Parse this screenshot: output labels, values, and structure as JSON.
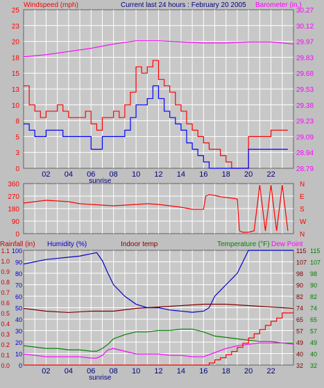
{
  "header": {
    "left": "Windspeed (mph)",
    "center": "Current last 24 hours : February 20 2005",
    "right": "Barometer (in.)"
  },
  "colors": {
    "bg": "#c0c0c0",
    "plot": "#c8c8c8",
    "grid": "#ffffff",
    "wind": "#ff0000",
    "gust": "#ff0000",
    "avg": "#0000ff",
    "baro": "#ff00ff",
    "humidity": "#0000cc",
    "indoor": "#800000",
    "temperature": "#008000",
    "dewpoint": "#ff00ff",
    "rain": "#ff0000"
  },
  "chart_data": [
    {
      "id": "wind",
      "type": "line",
      "xticks": [
        "02",
        "04",
        "06",
        "08",
        "10",
        "12",
        "14",
        "16",
        "18",
        "20",
        "22"
      ],
      "sunrise_label": "sunrise",
      "xrange": [
        0,
        24
      ],
      "ylim_left": [
        0,
        25
      ],
      "yticks_left": [
        "0",
        "3",
        "5",
        "8",
        "10",
        "13",
        "15",
        "18",
        "20",
        "23",
        "25"
      ],
      "yticks_right": [
        "28.79",
        "28.94",
        "29.09",
        "29.23",
        "29.38",
        "29.53",
        "29.68",
        "29.83",
        "29.97",
        "30.12",
        "30.27"
      ],
      "ylim_right": [
        28.79,
        30.27
      ],
      "series": [
        {
          "color": "#ff0000",
          "x": [
            0,
            0.5,
            1,
            1.5,
            2,
            2.5,
            3,
            3.5,
            4,
            4.5,
            5,
            5.5,
            6,
            6.5,
            7,
            7.5,
            8,
            8.5,
            9,
            9.5,
            10,
            10.5,
            11,
            11.5,
            12,
            12.5,
            13,
            13.5,
            14,
            14.5,
            15,
            15.5,
            16,
            16.5,
            17,
            17.5,
            18,
            18.5,
            19,
            19.5,
            20,
            20.5,
            21,
            21.5,
            22,
            22.5,
            23,
            23.5
          ],
          "values": [
            13,
            10,
            9,
            8,
            9,
            9,
            10,
            9,
            8,
            8,
            8,
            9,
            7,
            6,
            8,
            8,
            9,
            8,
            10,
            12,
            16,
            15,
            16,
            17,
            14,
            13,
            12,
            10,
            9,
            7,
            6,
            5,
            4,
            3,
            3,
            2,
            1,
            0,
            0,
            0,
            5,
            5,
            5,
            5,
            6,
            6,
            6,
            6
          ]
        },
        {
          "color": "#0000ff",
          "x": [
            0,
            0.5,
            1,
            1.5,
            2,
            2.5,
            3,
            3.5,
            4,
            4.5,
            5,
            5.5,
            6,
            6.5,
            7,
            7.5,
            8,
            8.5,
            9,
            9.5,
            10,
            10.5,
            11,
            11.5,
            12,
            12.5,
            13,
            13.5,
            14,
            14.5,
            15,
            15.5,
            16,
            16.5,
            17,
            17.5,
            18,
            18.5,
            19,
            19.5,
            20,
            20.5,
            21,
            21.5,
            22,
            22.5,
            23,
            23.5
          ],
          "values": [
            7,
            6,
            5,
            5,
            6,
            6,
            6,
            5,
            5,
            5,
            5,
            5,
            3,
            3,
            5,
            5,
            5,
            5,
            6,
            8,
            10,
            10,
            11,
            13,
            11,
            9,
            8,
            7,
            6,
            4,
            3,
            2,
            1,
            0,
            0,
            0,
            0,
            0,
            0,
            0,
            3,
            3,
            3,
            3,
            3,
            3,
            3,
            3
          ]
        },
        {
          "color": "#ff00ff",
          "axis": "right",
          "x": [
            0,
            2,
            4,
            6,
            8,
            10,
            12,
            14,
            16,
            18,
            20,
            22,
            24
          ],
          "values": [
            29.83,
            29.85,
            29.88,
            29.91,
            29.95,
            29.98,
            29.98,
            29.97,
            29.96,
            29.96,
            29.97,
            29.97,
            29.95
          ]
        }
      ]
    },
    {
      "id": "direction",
      "type": "line",
      "xrange": [
        0,
        24
      ],
      "ylim": [
        0,
        360
      ],
      "yticks_left": [
        "0",
        "90",
        "180",
        "270",
        "360"
      ],
      "yticks_right": [
        "N",
        "W",
        "S",
        "E",
        "N"
      ],
      "series": [
        {
          "color": "#ff0000",
          "x": [
            0,
            1,
            2,
            3,
            4,
            5,
            6,
            7,
            8,
            9,
            10,
            11,
            12,
            13,
            14,
            15,
            16,
            16.2,
            16.5,
            17,
            17.5,
            18,
            18.5,
            19,
            19.2,
            19.5,
            20,
            20.5,
            21,
            21.5,
            22,
            22.5,
            23,
            23.5
          ],
          "values": [
            220,
            230,
            240,
            235,
            230,
            215,
            210,
            205,
            200,
            205,
            210,
            215,
            210,
            200,
            190,
            175,
            175,
            270,
            280,
            275,
            265,
            260,
            255,
            250,
            20,
            10,
            10,
            20,
            350,
            20,
            350,
            20,
            350,
            20
          ]
        }
      ]
    },
    {
      "id": "weather",
      "type": "line",
      "header": {
        "rain": "Rainfall (in)",
        "humidity": "Humidity (%)",
        "indoor": "Indoor temp",
        "temperature": "Temperature (°F)",
        "dewpoint": "Dew Point"
      },
      "xrange": [
        0,
        24
      ],
      "xticks": [
        "02",
        "04",
        "06",
        "08",
        "10",
        "12",
        "14",
        "16",
        "18",
        "20",
        "22"
      ],
      "sunrise_label": "sunrise",
      "yticks_rain": [
        "0.0",
        "0.1",
        "0.2",
        "0.3",
        "0.4",
        "0.5",
        "0.6",
        "0.7",
        "0.8",
        "0.9",
        "1.0",
        "1.1"
      ],
      "ylim_rain": [
        0,
        1.1
      ],
      "yticks_humidity": [
        "0",
        "10",
        "20",
        "30",
        "40",
        "50",
        "60",
        "70",
        "80",
        "90",
        "100"
      ],
      "ylim_humidity": [
        0,
        100
      ],
      "yticks_indoor": [
        "32",
        "40",
        "49",
        "57",
        "65",
        "74",
        "82",
        "90",
        "98",
        "107",
        "115"
      ],
      "yticks_temp": [
        "32",
        "40",
        "49",
        "57",
        "65",
        "74",
        "82",
        "90",
        "98",
        "107",
        "115"
      ],
      "ylim_temp": [
        32,
        115
      ],
      "series": [
        {
          "color": "#0000cc",
          "axis": "humidity",
          "x": [
            0,
            1,
            2,
            3,
            4,
            5,
            6,
            6.5,
            7,
            7.5,
            8,
            9,
            10,
            11,
            12,
            13,
            14,
            15,
            16,
            16.5,
            17,
            18,
            19,
            19.5,
            20,
            21,
            22,
            23,
            24
          ],
          "values": [
            88,
            90,
            92,
            93,
            94,
            95,
            97,
            98,
            91,
            80,
            70,
            60,
            53,
            50,
            50,
            48,
            47,
            46,
            47,
            50,
            60,
            70,
            80,
            90,
            100,
            100,
            100,
            100,
            100
          ]
        },
        {
          "color": "#800000",
          "axis": "temp",
          "x": [
            0,
            2,
            4,
            6,
            8,
            10,
            12,
            14,
            16,
            18,
            20,
            22,
            24
          ],
          "values": [
            73,
            71,
            70,
            71,
            71,
            73,
            74,
            75,
            76,
            76,
            75,
            74,
            73
          ]
        },
        {
          "color": "#008000",
          "axis": "temp",
          "x": [
            0,
            1,
            2,
            3,
            4,
            5,
            6,
            6.5,
            7,
            7.5,
            8,
            9,
            10,
            11,
            12,
            13,
            14,
            15,
            16,
            17,
            18,
            19,
            20,
            21,
            22,
            23,
            24
          ],
          "values": [
            46,
            45,
            44,
            44,
            43,
            43,
            42,
            42,
            44,
            47,
            51,
            54,
            56,
            56,
            57,
            57,
            58,
            58,
            56,
            53,
            52,
            51,
            50,
            49,
            49,
            48,
            48
          ]
        },
        {
          "color": "#ff00ff",
          "axis": "temp",
          "x": [
            0,
            1,
            2,
            3,
            4,
            5,
            6,
            6.5,
            7,
            7.5,
            8,
            9,
            10,
            11,
            12,
            13,
            14,
            15,
            16,
            17,
            18,
            19,
            20,
            21,
            22,
            23,
            24
          ],
          "values": [
            40,
            39,
            38,
            38,
            38,
            38,
            37,
            37,
            39,
            43,
            44,
            42,
            40,
            40,
            40,
            39,
            39,
            38,
            38,
            41,
            44,
            46,
            47,
            48,
            48,
            48,
            47
          ]
        },
        {
          "color": "#ff0000",
          "axis": "rain",
          "x": [
            0,
            16,
            16.5,
            17,
            17.5,
            18,
            18.5,
            19,
            19.5,
            20,
            20.5,
            21,
            21.5,
            22,
            22.5,
            23,
            24
          ],
          "values": [
            0,
            0,
            0.02,
            0.05,
            0.07,
            0.1,
            0.13,
            0.17,
            0.21,
            0.26,
            0.3,
            0.34,
            0.38,
            0.42,
            0.45,
            0.5,
            0.5
          ]
        }
      ]
    }
  ]
}
